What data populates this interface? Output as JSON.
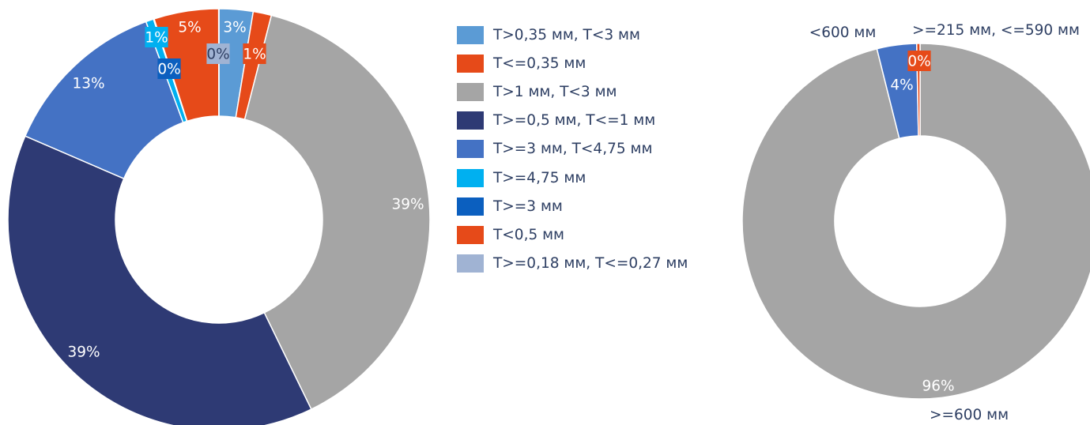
{
  "chart_data": [
    {
      "type": "pie",
      "donut": true,
      "categories": [
        "T>0,35 мм, T<3 мм",
        "T<=0,35 мм",
        "T>1 мм, T<3 мм",
        "T>=0,5 мм, T<=1 мм",
        "T>=3 мм, T<4,75 мм",
        "T>=4,75 мм",
        "T>=3 мм",
        "T<0,5 мм",
        "T>=0,18 мм, T<=0,27 мм"
      ],
      "slices": [
        {
          "name": "T>0,35 мм, T<3 мм",
          "value": 2.6,
          "label": "3%",
          "color": "#5B9BD5"
        },
        {
          "name": "T<=0,35 мм",
          "value": 1.4,
          "label": "1%",
          "color": "#E64A19"
        },
        {
          "name": "T>1 мм, T<3 мм",
          "value": 38.8,
          "label": "39%",
          "color": "#A5A5A5"
        },
        {
          "name": "T>=0,5 мм, T<=1 мм",
          "value": 38.7,
          "label": "39%",
          "color": "#2E3A74"
        },
        {
          "name": "T>=3 мм, T<4,75 мм",
          "value": 12.9,
          "label": "13%",
          "color": "#4472C4"
        },
        {
          "name": "T>=4,75 мм",
          "value": 0.6,
          "label": "1%",
          "color": "#00B0F0"
        },
        {
          "name": "T>=3 мм",
          "value": 0.05,
          "label": "0%",
          "color": "#0B5FBF"
        },
        {
          "name": "T<0,5 мм",
          "value": 4.95,
          "label": "5%",
          "color": "#E64A19"
        },
        {
          "name": "T>=0,18 мм, T<=0,27 мм",
          "value": 0.02,
          "label": "0%",
          "color": "#A0B3D3"
        }
      ],
      "legend_position": "right"
    },
    {
      "type": "pie",
      "donut": true,
      "slices": [
        {
          "name": ">=600 мм",
          "value": 96,
          "label": "96%",
          "color": "#A5A5A5"
        },
        {
          "name": "<600 мм",
          "value": 3.6,
          "label": "4%",
          "color": "#4472C4"
        },
        {
          "name": ">=215 мм, <=590 мм",
          "value": 0.3,
          "label": "0%",
          "color": "#E64A19"
        }
      ],
      "legend_position": "none"
    }
  ]
}
